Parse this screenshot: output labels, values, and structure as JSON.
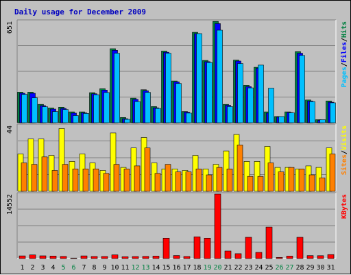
{
  "chart_data": {
    "type": "bar",
    "title": "Daily usage for December 2009",
    "categories": [
      "1",
      "2",
      "3",
      "4",
      "5",
      "6",
      "7",
      "8",
      "9",
      "10",
      "11",
      "12",
      "13",
      "14",
      "15",
      "16",
      "17",
      "18",
      "19",
      "20",
      "21",
      "22",
      "23",
      "24",
      "25",
      "26",
      "27",
      "28",
      "29",
      "30",
      "31"
    ],
    "weekend_days": [
      "5",
      "6",
      "12",
      "13",
      "19",
      "20",
      "26",
      "27"
    ],
    "panels": [
      {
        "id": "hits",
        "ymax_label": "651",
        "ymax": 651,
        "legend": [
          {
            "name": "Pages",
            "color": "#00c0ff"
          },
          {
            "name": "/",
            "color": "#000000"
          },
          {
            "name": "Files",
            "color": "#0000ff"
          },
          {
            "name": "/",
            "color": "#000000"
          },
          {
            "name": "Hits",
            "color": "#008040"
          }
        ],
        "series": [
          {
            "name": "Hits",
            "color": "#008040",
            "values": [
              196,
              196,
              118,
              95,
              100,
              70,
              70,
              193,
              218,
              475,
              34,
              158,
              212,
              104,
              460,
              268,
              72,
              580,
              400,
              650,
              118,
              402,
              240,
              356,
              70,
              40,
              70,
              456,
              146,
              20,
              140
            ]
          },
          {
            "name": "Files",
            "color": "#0000ff",
            "values": [
              189,
              189,
              110,
              88,
              92,
              62,
              64,
              186,
              210,
              465,
              26,
              150,
              205,
              96,
              452,
              262,
              68,
              572,
              392,
              636,
              112,
              396,
              232,
              350,
              62,
              36,
              66,
              446,
              140,
              16,
              132
            ]
          },
          {
            "name": "Pages",
            "color": "#00c0ff",
            "values": [
              182,
              160,
              103,
              72,
              85,
              46,
              60,
              180,
              194,
              446,
              22,
              136,
              195,
              92,
              446,
              252,
              62,
              572,
              386,
              594,
              104,
              380,
              224,
              370,
              222,
              40,
              64,
              432,
              136,
              20,
              128
            ]
          }
        ]
      },
      {
        "id": "visits",
        "ymax_label": "44",
        "ymax": 44,
        "legend": [
          {
            "name": "Sites",
            "color": "#ff8000"
          },
          {
            "name": "/",
            "color": "#000000"
          },
          {
            "name": "Visits",
            "color": "#ffff00"
          }
        ],
        "series": [
          {
            "name": "Visits",
            "color": "#ffff00",
            "values": [
              25,
              35,
              35,
              24,
              42,
              20,
              25,
              19,
              14,
              39,
              16,
              29,
              36,
              19,
              15,
              15,
              14,
              24,
              15,
              18,
              27,
              38,
              20,
              20,
              30,
              16,
              16,
              15,
              17,
              16,
              29
            ]
          },
          {
            "name": "Sites",
            "color": "#ff8000",
            "values": [
              19,
              18,
              23,
              14,
              18,
              15,
              15,
              15,
              12,
              18,
              15,
              17,
              29,
              12,
              18,
              13,
              13,
              15,
              11,
              16,
              15,
              31,
              10,
              10,
              19,
              13,
              16,
              15,
              11,
              9,
              25
            ]
          }
        ]
      },
      {
        "id": "kbytes",
        "ymax_label": "14552",
        "ymax": 14552,
        "legend": [
          {
            "name": "KBytes",
            "color": "#ff0000"
          }
        ],
        "series": [
          {
            "name": "KBytes",
            "color": "#ff0000",
            "values": [
              600,
              820,
              620,
              570,
              480,
              130,
              600,
              460,
              460,
              830,
              410,
              450,
              480,
              560,
              4600,
              680,
              460,
              4900,
              4600,
              14552,
              1700,
              1100,
              4800,
              1400,
              7100,
              250,
              560,
              4800,
              670,
              650,
              900
            ]
          }
        ]
      }
    ],
    "grid": true
  }
}
